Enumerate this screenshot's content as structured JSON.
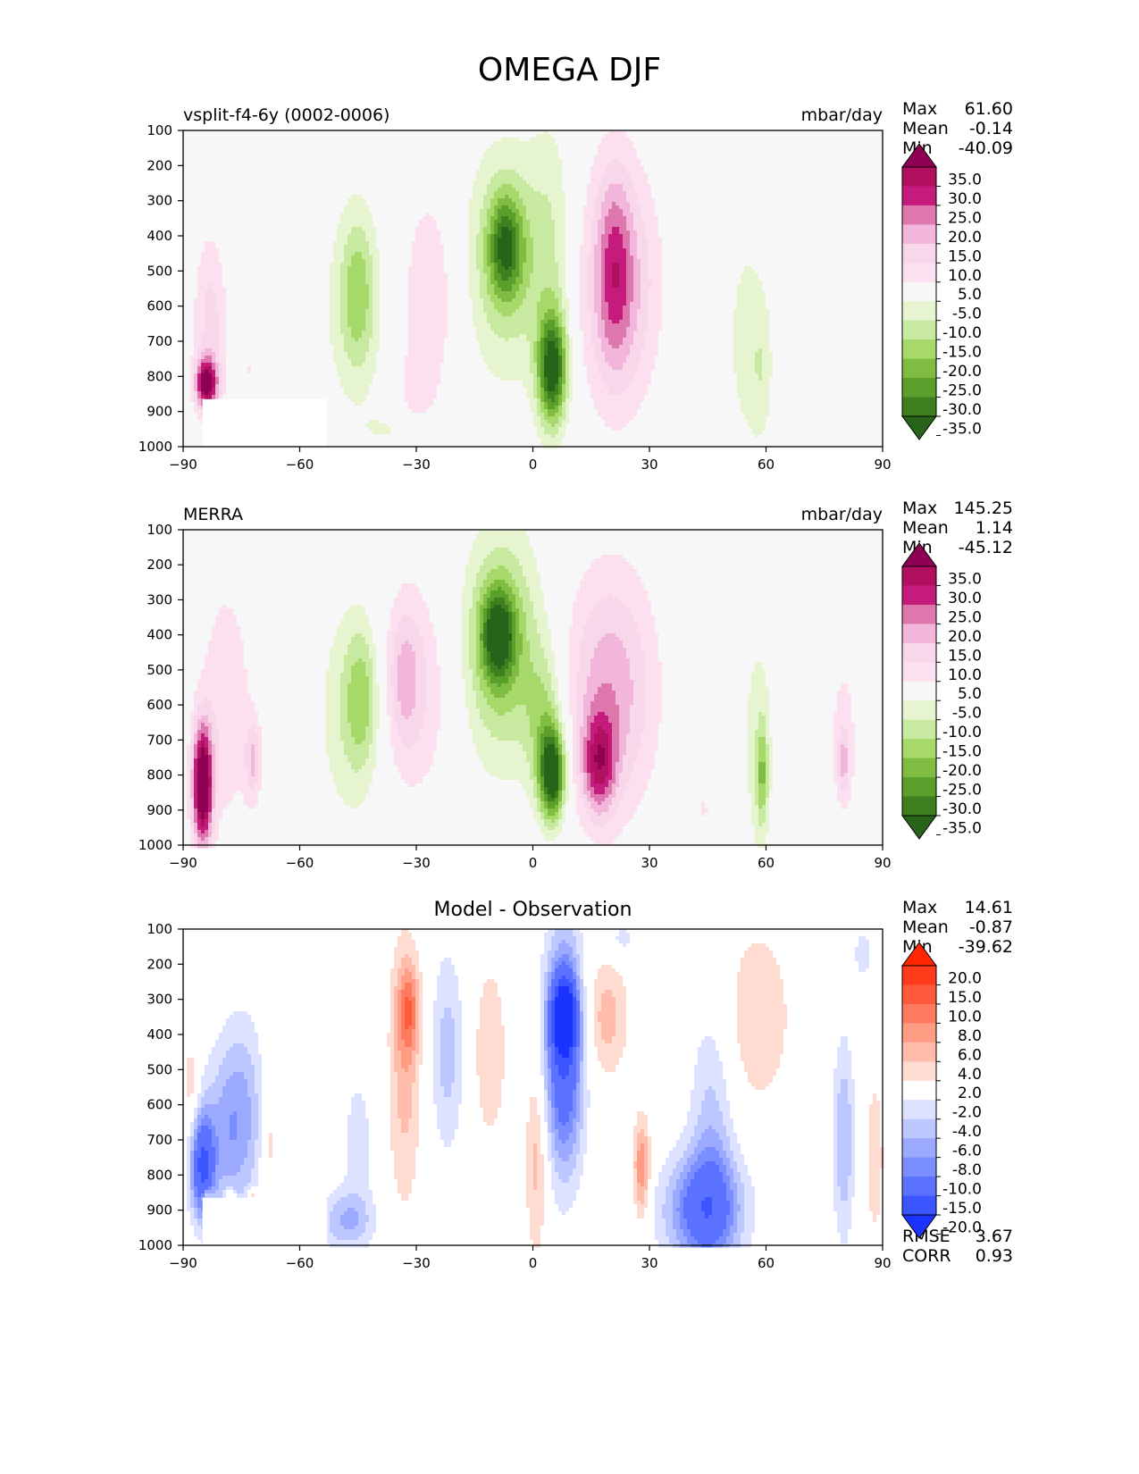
{
  "title": "OMEGA DJF",
  "chart_data": [
    {
      "type": "heatmap",
      "title": "vsplit-f4-6y (0002-0006)",
      "units": "mbar/day",
      "x_ticks": [
        "−90",
        "−60",
        "−30",
        "0",
        "30",
        "60",
        "90"
      ],
      "y_ticks": [
        "100",
        "200",
        "300",
        "400",
        "500",
        "600",
        "700",
        "800",
        "900",
        "1000"
      ],
      "xlim": [
        -90,
        90
      ],
      "ylim": [
        1000,
        100
      ],
      "stats": [
        {
          "label": "Max",
          "value": "61.60"
        },
        {
          "label": "Mean",
          "value": "-0.14"
        },
        {
          "label": "Min",
          "value": "-40.09"
        }
      ],
      "colorbar": {
        "labels": [
          "35.0",
          "30.0",
          "25.0",
          "20.0",
          "15.0",
          "10.0",
          "5.0",
          "-5.0",
          "-10.0",
          "-15.0",
          "-20.0",
          "-25.0",
          "-30.0",
          "-35.0"
        ],
        "colors": [
          "#8e0152",
          "#b0105f",
          "#c51b7d",
          "#de77ae",
          "#f1b6da",
          "#f8d7ea",
          "#fde0ef",
          "#f7f7f7",
          "#e6f5d0",
          "#c7e9a0",
          "#a6d96a",
          "#7fbc41",
          "#5a9e2c",
          "#3f7f1f",
          "#276419"
        ],
        "colors_note": ""
      },
      "features": [
        {
          "x": -84,
          "y": 820,
          "v": 35,
          "sx": 2,
          "sy": 50
        },
        {
          "x": -83,
          "y": 650,
          "v": 12,
          "sx": 3,
          "sy": 180
        },
        {
          "x": -46,
          "y": 600,
          "v": -8,
          "sx": 6,
          "sy": 220
        },
        {
          "x": -45,
          "y": 560,
          "v": -12,
          "sx": 3,
          "sy": 150
        },
        {
          "x": -26,
          "y": 560,
          "v": 9,
          "sx": 6,
          "sy": 230
        },
        {
          "x": -36,
          "y": 950,
          "v": -5,
          "sx": 6,
          "sy": 40
        },
        {
          "x": -7,
          "y": 470,
          "v": -15,
          "sx": 8,
          "sy": 230
        },
        {
          "x": -7,
          "y": 430,
          "v": -25,
          "sx": 3,
          "sy": 100
        },
        {
          "x": 5,
          "y": 780,
          "v": -37,
          "sx": 2.6,
          "sy": 110
        },
        {
          "x": 5,
          "y": 450,
          "v": -7,
          "sx": 4,
          "sy": 300
        },
        {
          "x": 22,
          "y": 540,
          "v": 19,
          "sx": 7,
          "sy": 240
        },
        {
          "x": 21,
          "y": 480,
          "v": 12,
          "sx": 3,
          "sy": 200
        },
        {
          "x": 55,
          "y": 700,
          "v": -7,
          "sx": 4,
          "sy": 250
        },
        {
          "x": 59,
          "y": 780,
          "v": -6,
          "sx": 2,
          "sy": 140
        },
        {
          "x": 79,
          "y": 770,
          "v": 5,
          "sx": 1.5,
          "sy": 80
        },
        {
          "x": -73,
          "y": 780,
          "v": 5,
          "sx": 2,
          "sy": 100
        },
        {
          "x": -30,
          "y": 840,
          "v": 6,
          "sx": 3,
          "sy": 80
        }
      ]
    },
    {
      "type": "heatmap",
      "title": "MERRA",
      "units": "mbar/day",
      "x_ticks": [
        "−90",
        "−60",
        "−30",
        "0",
        "30",
        "60",
        "90"
      ],
      "y_ticks": [
        "100",
        "200",
        "300",
        "400",
        "500",
        "600",
        "700",
        "800",
        "900",
        "1000"
      ],
      "xlim": [
        -90,
        90
      ],
      "ylim": [
        1000,
        100
      ],
      "stats": [
        {
          "label": "Max",
          "value": "145.25"
        },
        {
          "label": "Mean",
          "value": "1.14"
        },
        {
          "label": "Min",
          "value": "-45.12"
        }
      ],
      "colorbar": {
        "labels": [
          "35.0",
          "30.0",
          "25.0",
          "20.0",
          "15.0",
          "10.0",
          "5.0",
          "-5.0",
          "-10.0",
          "-15.0",
          "-20.0",
          "-25.0",
          "-30.0",
          "-35.0"
        ],
        "colors": [
          "#8e0152",
          "#b0105f",
          "#c51b7d",
          "#de77ae",
          "#f1b6da",
          "#f8d7ea",
          "#fde0ef",
          "#f7f7f7",
          "#e6f5d0",
          "#c7e9a0",
          "#a6d96a",
          "#7fbc41",
          "#5a9e2c",
          "#3f7f1f",
          "#276419"
        ]
      },
      "features": [
        {
          "x": -85,
          "y": 830,
          "v": 45,
          "sx": 1.8,
          "sy": 120
        },
        {
          "x": -79,
          "y": 600,
          "v": 9,
          "sx": 5,
          "sy": 260
        },
        {
          "x": -72,
          "y": 760,
          "v": 14,
          "sx": 1.5,
          "sy": 80
        },
        {
          "x": -47,
          "y": 620,
          "v": -9,
          "sx": 6,
          "sy": 230
        },
        {
          "x": -44,
          "y": 580,
          "v": -13,
          "sx": 3,
          "sy": 140
        },
        {
          "x": -30,
          "y": 560,
          "v": 9,
          "sx": 7,
          "sy": 230
        },
        {
          "x": -33,
          "y": 520,
          "v": 11,
          "sx": 3,
          "sy": 140
        },
        {
          "x": -8,
          "y": 430,
          "v": -20,
          "sx": 7,
          "sy": 230
        },
        {
          "x": -9,
          "y": 400,
          "v": -28,
          "sx": 3,
          "sy": 90
        },
        {
          "x": 5,
          "y": 800,
          "v": -40,
          "sx": 2.3,
          "sy": 90
        },
        {
          "x": 3,
          "y": 650,
          "v": -14,
          "sx": 3.5,
          "sy": 150
        },
        {
          "x": 20,
          "y": 560,
          "v": 19,
          "sx": 8,
          "sy": 240
        },
        {
          "x": 17,
          "y": 770,
          "v": 24,
          "sx": 3,
          "sy": 100
        },
        {
          "x": 58,
          "y": 720,
          "v": -8,
          "sx": 3,
          "sy": 250
        },
        {
          "x": 59,
          "y": 800,
          "v": -15,
          "sx": 1,
          "sy": 100
        },
        {
          "x": 80,
          "y": 700,
          "v": 7,
          "sx": 3,
          "sy": 200
        },
        {
          "x": 80,
          "y": 760,
          "v": 12,
          "sx": 1,
          "sy": 60
        },
        {
          "x": 44,
          "y": 900,
          "v": 5,
          "sx": 5,
          "sy": 120
        }
      ]
    },
    {
      "type": "heatmap",
      "title": "Model - Observation",
      "x_ticks": [
        "−90",
        "−60",
        "−30",
        "0",
        "30",
        "60",
        "90"
      ],
      "y_ticks": [
        "100",
        "200",
        "300",
        "400",
        "500",
        "600",
        "700",
        "800",
        "900",
        "1000"
      ],
      "xlim": [
        -90,
        90
      ],
      "ylim": [
        1000,
        100
      ],
      "stats": [
        {
          "label": "Max",
          "value": "14.61"
        },
        {
          "label": "Mean",
          "value": "-0.87"
        },
        {
          "label": "Min",
          "value": "-39.62"
        }
      ],
      "metrics": [
        {
          "label": "RMSE",
          "value": "3.67"
        },
        {
          "label": "CORR",
          "value": "0.93"
        }
      ],
      "colorbar": {
        "labels": [
          "20.0",
          "15.0",
          "10.0",
          "8.0",
          "6.0",
          "4.0",
          "2.0",
          "-2.0",
          "-4.0",
          "-6.0",
          "-8.0",
          "-10.0",
          "-15.0",
          "-20.0"
        ],
        "colors": [
          "#ff2600",
          "#ff3b1c",
          "#ff5a3c",
          "#ff7b5f",
          "#ff9c84",
          "#ffbcab",
          "#ffdcd2",
          "#ffffff",
          "#dce2ff",
          "#bcc6ff",
          "#9baaff",
          "#7b8eff",
          "#5a72ff",
          "#3b55ff",
          "#1a33ff"
        ]
      },
      "features": [
        {
          "x": -85,
          "y": 780,
          "v": -14,
          "sx": 2,
          "sy": 100
        },
        {
          "x": -78,
          "y": 700,
          "v": -7,
          "sx": 6,
          "sy": 160
        },
        {
          "x": -75,
          "y": 500,
          "v": -3,
          "sx": 4,
          "sy": 150
        },
        {
          "x": -84,
          "y": 860,
          "v": 7,
          "sx": 1,
          "sy": 15
        },
        {
          "x": -78,
          "y": 860,
          "v": 6,
          "sx": 1,
          "sy": 15
        },
        {
          "x": -72,
          "y": 860,
          "v": 5,
          "sx": 1,
          "sy": 15
        },
        {
          "x": -68,
          "y": 700,
          "v": 4,
          "sx": 1.5,
          "sy": 150
        },
        {
          "x": -88,
          "y": 550,
          "v": 4,
          "sx": 1.5,
          "sy": 100
        },
        {
          "x": -48,
          "y": 930,
          "v": -6,
          "sx": 5,
          "sy": 60
        },
        {
          "x": -45,
          "y": 700,
          "v": -3,
          "sx": 3,
          "sy": 150
        },
        {
          "x": -33,
          "y": 500,
          "v": 5,
          "sx": 3,
          "sy": 280
        },
        {
          "x": -32,
          "y": 330,
          "v": 7,
          "sx": 2,
          "sy": 90
        },
        {
          "x": -22,
          "y": 450,
          "v": -5,
          "sx": 3,
          "sy": 200
        },
        {
          "x": -11,
          "y": 450,
          "v": 4,
          "sx": 3,
          "sy": 180
        },
        {
          "x": 1,
          "y": 750,
          "v": 5,
          "sx": 2,
          "sy": 200
        },
        {
          "x": 8,
          "y": 450,
          "v": -15,
          "sx": 3.5,
          "sy": 230
        },
        {
          "x": 8,
          "y": 350,
          "v": -22,
          "sx": 2,
          "sy": 70
        },
        {
          "x": 19,
          "y": 350,
          "v": 5,
          "sx": 4,
          "sy": 120
        },
        {
          "x": 28,
          "y": 780,
          "v": 8,
          "sx": 1.5,
          "sy": 100
        },
        {
          "x": 44,
          "y": 900,
          "v": -12,
          "sx": 7,
          "sy": 110
        },
        {
          "x": 46,
          "y": 700,
          "v": -5,
          "sx": 4,
          "sy": 250
        },
        {
          "x": 58,
          "y": 350,
          "v": 4,
          "sx": 6,
          "sy": 180
        },
        {
          "x": 80,
          "y": 700,
          "v": -6,
          "sx": 2,
          "sy": 200
        },
        {
          "x": 88,
          "y": 750,
          "v": 3,
          "sx": 2,
          "sy": 200
        },
        {
          "x": 85,
          "y": 170,
          "v": -3,
          "sx": 2,
          "sy": 60
        },
        {
          "x": 23,
          "y": 130,
          "v": -3,
          "sx": 3,
          "sy": 40
        }
      ]
    }
  ]
}
